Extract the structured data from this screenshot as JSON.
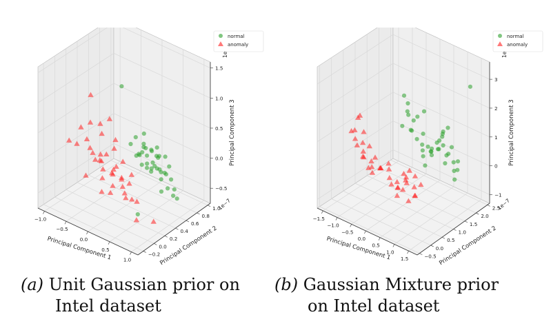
{
  "colors": {
    "normal": "#2ca02c",
    "anomaly": "#ff2020",
    "pane": "#f2f2f2",
    "grid": "#d8d8d8"
  },
  "captions": [
    {
      "label": "(a)",
      "line1": "Unit Gaussian prior on",
      "line2": "Intel dataset"
    },
    {
      "label": "(b)",
      "line1": "Gaussian Mixture prior",
      "line2": "on Intel dataset"
    }
  ],
  "chart_data": [
    {
      "type": "scatter",
      "projection": "3d",
      "xlabel": "Principal Component 1",
      "ylabel": "Principal Component 2",
      "zlabel": "Principal Component 3",
      "y_scale_label": "1e−7",
      "z_scale_label": "1e−7",
      "xlim": [
        -1.15,
        1.15
      ],
      "ylim": [
        -0.3,
        1.05
      ],
      "zlim": [
        -0.75,
        1.6
      ],
      "x_ticks": [
        "−1.0",
        "−0.5",
        "0.0",
        "0.5",
        "1.0"
      ],
      "x_tick_values": [
        -1.0,
        -0.5,
        0.0,
        0.5,
        1.0
      ],
      "y_ticks": [
        "−0.2",
        "0.0",
        "0.2",
        "0.4",
        "0.6",
        "0.8",
        "1.0"
      ],
      "y_tick_values": [
        -0.2,
        0.0,
        0.2,
        0.4,
        0.6,
        0.8,
        1.0
      ],
      "z_ticks": [
        "−0.5",
        "0.0",
        "0.5",
        "1.0",
        "1.5"
      ],
      "z_tick_values": [
        -0.5,
        0.0,
        0.5,
        1.0,
        1.5
      ],
      "grid": true,
      "legend_position": "top-right",
      "series": [
        {
          "name": "normal",
          "marker": "circle",
          "points": [
            [
              0.15,
              0.55,
              0.1
            ],
            [
              0.22,
              0.58,
              0.05
            ],
            [
              0.3,
              0.52,
              -0.02
            ],
            [
              0.38,
              0.56,
              0.0
            ],
            [
              0.45,
              0.6,
              0.08
            ],
            [
              0.5,
              0.5,
              0.02
            ],
            [
              0.2,
              0.45,
              0.15
            ],
            [
              0.28,
              0.62,
              0.12
            ],
            [
              0.35,
              0.48,
              -0.05
            ],
            [
              0.42,
              0.5,
              -0.1
            ],
            [
              0.55,
              0.55,
              -0.05
            ],
            [
              0.6,
              0.6,
              -0.12
            ],
            [
              0.65,
              0.5,
              -0.15
            ],
            [
              0.7,
              0.55,
              -0.08
            ],
            [
              0.75,
              0.6,
              -0.18
            ],
            [
              0.08,
              0.5,
              0.05
            ],
            [
              0.12,
              0.6,
              0.2
            ],
            [
              0.25,
              0.5,
              0.25
            ],
            [
              0.32,
              0.58,
              0.18
            ],
            [
              0.4,
              0.62,
              0.22
            ],
            [
              0.48,
              0.55,
              0.15
            ],
            [
              0.05,
              0.58,
              0.0
            ],
            [
              0.18,
              0.52,
              -0.08
            ],
            [
              0.8,
              0.5,
              -0.25
            ],
            [
              0.85,
              0.58,
              -0.3
            ],
            [
              0.9,
              0.52,
              -0.35
            ],
            [
              0.0,
              0.55,
              0.3
            ],
            [
              -0.05,
              0.5,
              0.2
            ],
            [
              0.1,
              0.62,
              0.35
            ],
            [
              0.55,
              0.65,
              0.1
            ],
            [
              0.62,
              0.45,
              0.05
            ],
            [
              0.68,
              0.62,
              0.0
            ],
            [
              0.36,
              0.45,
              0.3
            ],
            [
              0.44,
              0.66,
              -0.2
            ],
            [
              0.3,
              0.6,
              -0.15
            ],
            [
              0.95,
              0.55,
              -0.4
            ],
            [
              0.0,
              0.3,
              1.3
            ],
            [
              0.5,
              0.2,
              -0.6
            ],
            [
              0.72,
              0.45,
              -0.3
            ],
            [
              0.58,
              0.52,
              0.2
            ]
          ]
        },
        {
          "name": "anomaly",
          "marker": "triangle",
          "points": [
            [
              -0.5,
              0.3,
              -0.1
            ],
            [
              -0.4,
              0.25,
              -0.05
            ],
            [
              -0.3,
              0.2,
              -0.12
            ],
            [
              -0.2,
              0.28,
              -0.2
            ],
            [
              -0.1,
              0.22,
              -0.15
            ],
            [
              0.0,
              0.3,
              -0.25
            ],
            [
              0.1,
              0.24,
              -0.3
            ],
            [
              0.2,
              0.2,
              -0.35
            ],
            [
              -0.45,
              0.18,
              0.0
            ],
            [
              -0.35,
              0.3,
              0.05
            ],
            [
              -0.25,
              0.15,
              -0.22
            ],
            [
              -0.15,
              0.32,
              -0.1
            ],
            [
              -0.05,
              0.18,
              -0.3
            ],
            [
              0.05,
              0.26,
              -0.18
            ],
            [
              0.15,
              0.32,
              -0.28
            ],
            [
              0.25,
              0.18,
              -0.4
            ],
            [
              -0.6,
              0.25,
              0.02
            ],
            [
              -0.55,
              0.35,
              -0.05
            ],
            [
              -0.7,
              0.28,
              0.05
            ],
            [
              -0.8,
              0.3,
              0.15
            ],
            [
              -0.9,
              0.2,
              0.1
            ],
            [
              -1.0,
              0.35,
              0.25
            ],
            [
              -0.85,
              0.4,
              0.35
            ],
            [
              -0.65,
              0.45,
              0.2
            ],
            [
              -0.75,
              0.5,
              0.3
            ],
            [
              -0.3,
              0.4,
              0.1
            ],
            [
              -0.2,
              0.1,
              -0.4
            ],
            [
              0.3,
              0.25,
              -0.45
            ],
            [
              0.35,
              0.3,
              -0.5
            ],
            [
              0.6,
              0.1,
              -0.6
            ],
            [
              0.8,
              0.25,
              -0.65
            ],
            [
              -1.1,
              0.6,
              0.6
            ],
            [
              -0.95,
              0.1,
              0.2
            ],
            [
              -0.4,
              0.5,
              0.15
            ],
            [
              -0.1,
              0.4,
              -0.05
            ],
            [
              0.0,
              0.1,
              -0.35
            ],
            [
              -0.5,
              0.05,
              -0.2
            ],
            [
              -0.6,
              0.55,
              0.4
            ],
            [
              0.1,
              0.4,
              -0.2
            ],
            [
              -0.25,
              0.35,
              -0.2
            ]
          ]
        }
      ]
    },
    {
      "type": "scatter",
      "projection": "3d",
      "xlabel": "Principal Component 1",
      "ylabel": "Principal Component 2",
      "zlabel": "Principal Component 3",
      "y_scale_label": "1e−7",
      "z_scale_label": "1e−7",
      "xlim": [
        -1.7,
        1.8
      ],
      "ylim": [
        -0.6,
        2.6
      ],
      "zlim": [
        -1.3,
        3.6
      ],
      "x_ticks": [
        "−1.5",
        "−1.0",
        "−0.5",
        "0.0",
        "0.5",
        "1.0",
        "1.5"
      ],
      "x_tick_values": [
        -1.5,
        -1.0,
        -0.5,
        0.0,
        0.5,
        1.0,
        1.5
      ],
      "y_ticks": [
        "−0.5",
        "0.0",
        "0.5",
        "1.0",
        "1.5",
        "2.0",
        "2.5"
      ],
      "y_tick_values": [
        -0.5,
        0.0,
        0.5,
        1.0,
        1.5,
        2.0,
        2.5
      ],
      "z_ticks": [
        "−1",
        "0",
        "1",
        "2",
        "3"
      ],
      "z_tick_values": [
        -1,
        0,
        1,
        2,
        3
      ],
      "grid": true,
      "legend_position": "top-right",
      "series": [
        {
          "name": "normal",
          "marker": "circle",
          "points": [
            [
              -0.5,
              1.8,
              1.2
            ],
            [
              -0.4,
              1.9,
              1.0
            ],
            [
              -0.3,
              1.7,
              0.8
            ],
            [
              -0.2,
              1.8,
              0.5
            ],
            [
              -0.1,
              1.9,
              0.3
            ],
            [
              0.0,
              1.8,
              0.2
            ],
            [
              0.1,
              1.7,
              0.1
            ],
            [
              0.2,
              1.9,
              0.2
            ],
            [
              0.3,
              1.8,
              0.3
            ],
            [
              0.4,
              1.7,
              0.5
            ],
            [
              0.5,
              1.8,
              0.7
            ],
            [
              0.6,
              1.9,
              0.9
            ],
            [
              0.7,
              1.8,
              1.1
            ],
            [
              0.8,
              1.7,
              0.8
            ],
            [
              0.9,
              1.8,
              0.5
            ],
            [
              1.0,
              1.9,
              0.2
            ],
            [
              1.1,
              1.8,
              0.0
            ],
            [
              1.2,
              1.7,
              -0.2
            ],
            [
              -0.6,
              1.9,
              1.5
            ],
            [
              -0.45,
              1.7,
              1.4
            ],
            [
              -0.35,
              2.0,
              1.1
            ],
            [
              -0.25,
              1.6,
              0.9
            ],
            [
              -0.15,
              2.0,
              0.6
            ],
            [
              0.15,
              2.0,
              0.0
            ],
            [
              0.35,
              1.6,
              0.6
            ],
            [
              0.55,
              2.0,
              1.0
            ],
            [
              0.75,
              1.6,
              1.0
            ],
            [
              0.85,
              2.0,
              0.6
            ],
            [
              0.95,
              1.6,
              0.3
            ],
            [
              1.05,
              2.0,
              -0.1
            ],
            [
              -0.55,
              1.6,
              0.9
            ],
            [
              -0.65,
              1.8,
              1.8
            ],
            [
              0.45,
              1.9,
              0.4
            ],
            [
              0.65,
              1.7,
              0.6
            ],
            [
              1.15,
              1.9,
              0.3
            ],
            [
              -0.2,
              2.1,
              1.3
            ],
            [
              0.25,
              1.6,
              -0.1
            ],
            [
              0.8,
              1.9,
              1.3
            ],
            [
              1.0,
              1.6,
              0.6
            ],
            [
              1.5,
              2.0,
              3.0
            ]
          ]
        },
        {
          "name": "anomaly",
          "marker": "triangle",
          "points": [
            [
              -1.3,
              0.5,
              1.0
            ],
            [
              -1.2,
              0.4,
              0.8
            ],
            [
              -1.1,
              0.6,
              0.6
            ],
            [
              -1.0,
              0.5,
              0.4
            ],
            [
              -0.9,
              0.4,
              0.3
            ],
            [
              -0.8,
              0.6,
              0.1
            ],
            [
              -0.7,
              0.5,
              0.0
            ],
            [
              -0.6,
              0.4,
              -0.1
            ],
            [
              -0.5,
              0.6,
              0.0
            ],
            [
              -0.4,
              0.5,
              0.1
            ],
            [
              -0.3,
              0.4,
              0.2
            ],
            [
              -0.2,
              0.6,
              0.3
            ],
            [
              -0.1,
              0.5,
              0.2
            ],
            [
              0.0,
              0.4,
              0.0
            ],
            [
              0.1,
              0.6,
              -0.2
            ],
            [
              0.2,
              0.5,
              -0.3
            ],
            [
              0.3,
              0.4,
              -0.2
            ],
            [
              0.4,
              0.6,
              0.0
            ],
            [
              0.5,
              0.5,
              0.2
            ],
            [
              0.6,
              0.4,
              0.1
            ],
            [
              0.7,
              0.6,
              -0.1
            ],
            [
              0.8,
              0.5,
              -0.3
            ],
            [
              0.9,
              0.4,
              -0.2
            ],
            [
              -1.35,
              0.7,
              1.3
            ],
            [
              -1.25,
              0.3,
              1.1
            ],
            [
              -1.15,
              0.7,
              0.9
            ],
            [
              -1.05,
              0.3,
              0.7
            ],
            [
              -0.95,
              0.7,
              0.5
            ],
            [
              -0.85,
              0.3,
              0.4
            ],
            [
              -0.75,
              0.7,
              0.2
            ],
            [
              0.25,
              0.7,
              0.1
            ],
            [
              0.35,
              0.3,
              -0.4
            ],
            [
              0.45,
              0.7,
              0.3
            ],
            [
              0.55,
              0.3,
              -0.1
            ],
            [
              0.65,
              0.7,
              0.2
            ],
            [
              0.75,
              0.3,
              -0.4
            ],
            [
              -1.2,
              0.6,
              1.5
            ],
            [
              -0.65,
              0.3,
              0.1
            ],
            [
              0.15,
              0.3,
              -0.1
            ],
            [
              0.85,
              0.7,
              0.0
            ]
          ]
        }
      ]
    }
  ]
}
